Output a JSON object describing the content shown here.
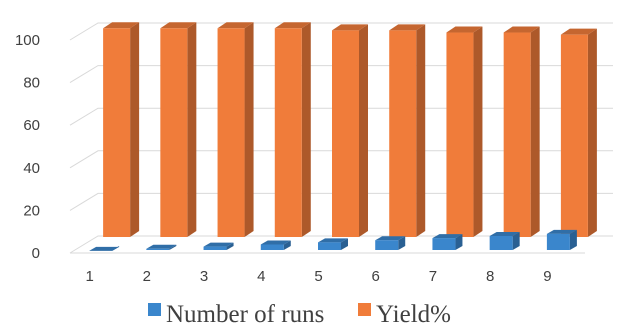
{
  "chart_data": {
    "type": "bar",
    "categories": [
      "1",
      "2",
      "3",
      "4",
      "5",
      "6",
      "7",
      "8",
      "9"
    ],
    "series": [
      {
        "name": "Number of runs",
        "values": [
          1,
          2,
          3,
          4,
          5,
          6,
          7,
          8,
          9
        ],
        "color": "#3a86cc"
      },
      {
        "name": "Yield%",
        "values": [
          98,
          98,
          98,
          98,
          97,
          97,
          96,
          96,
          95
        ],
        "color": "#f07c3a"
      }
    ],
    "y_ticks": [
      "0",
      "20",
      "40",
      "60",
      "80",
      "100"
    ],
    "ylim": [
      0,
      100
    ],
    "title": "",
    "xlabel": "",
    "ylabel": "",
    "grid": true,
    "legend_position": "bottom",
    "style": "3d-column"
  }
}
